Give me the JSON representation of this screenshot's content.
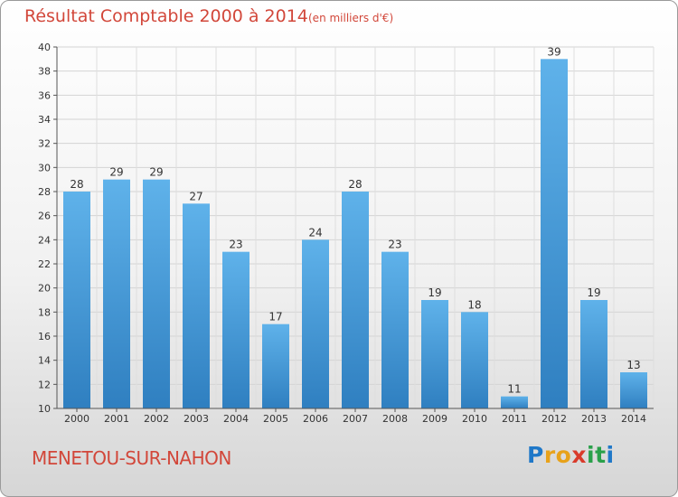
{
  "title": "Résultat Comptable 2000 à 2014",
  "subtitle": "(en milliers d'€)",
  "commune": "MENETOU-SUR-NAHON",
  "logo": {
    "letters": [
      "P",
      "r",
      "o",
      "x",
      "i",
      "t",
      "i"
    ],
    "colors": [
      "#1f78c8",
      "#e8a21a",
      "#e8a21a",
      "#d93b2b",
      "#2aa04a",
      "#2aa04a",
      "#1f78c8"
    ]
  },
  "colors": {
    "bar_light": "#5fb2ea",
    "bar_dark": "#2f7fc0",
    "title": "#d2473a"
  },
  "chart_data": {
    "type": "bar",
    "categories": [
      "2000",
      "2001",
      "2002",
      "2003",
      "2004",
      "2005",
      "2006",
      "2007",
      "2008",
      "2009",
      "2010",
      "2011",
      "2012",
      "2013",
      "2014"
    ],
    "values": [
      28,
      29,
      29,
      27,
      23,
      17,
      24,
      28,
      23,
      19,
      18,
      11,
      39,
      19,
      13
    ],
    "yticks": [
      10,
      12,
      14,
      16,
      18,
      20,
      22,
      24,
      26,
      28,
      30,
      32,
      34,
      36,
      38,
      40
    ],
    "ylim": [
      10,
      40
    ],
    "grid": true
  }
}
